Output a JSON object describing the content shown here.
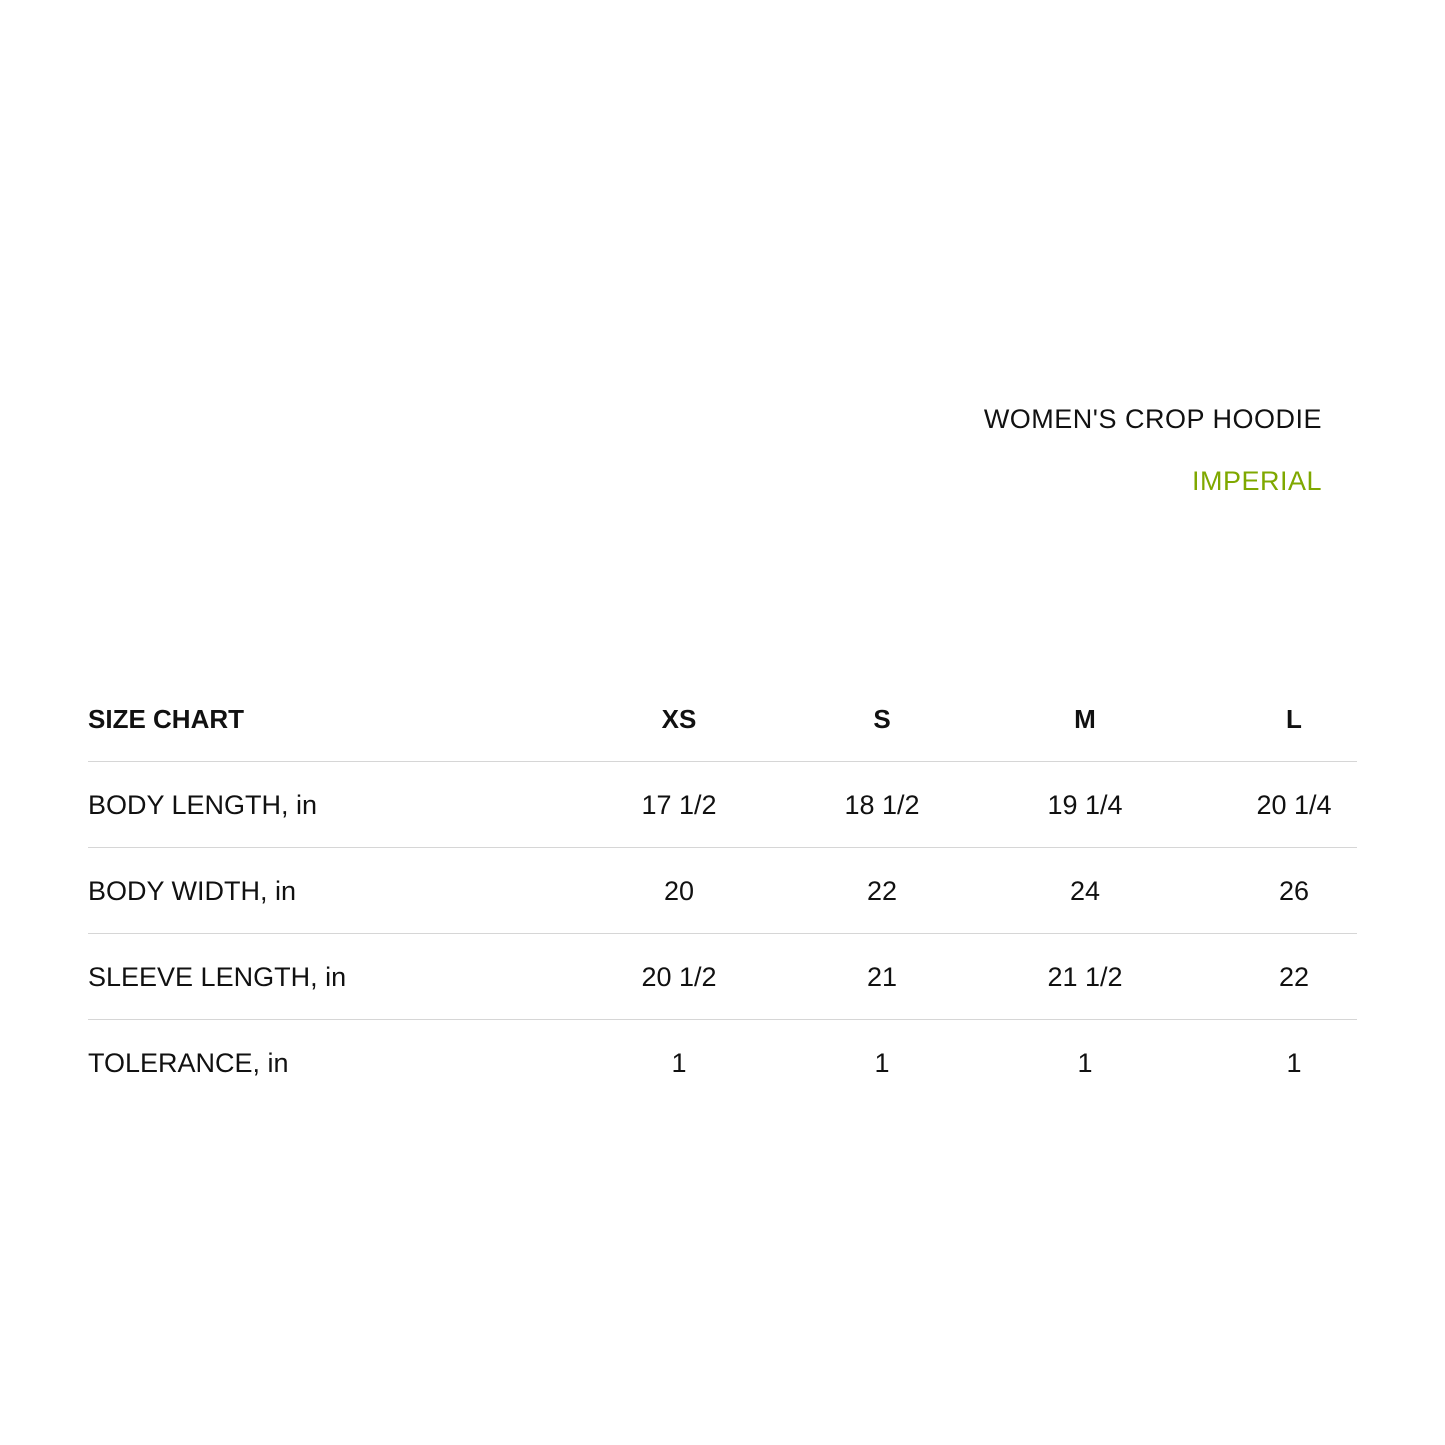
{
  "header": {
    "title": "WOMEN'S CROP HOODIE",
    "unit_system": "IMPERIAL",
    "unit_color": "#7fa800"
  },
  "table": {
    "corner_label": "SIZE CHART",
    "sizes": [
      "XS",
      "S",
      "M",
      "L"
    ],
    "rows": [
      {
        "label": "BODY LENGTH, in",
        "values": [
          "17 1/2",
          "18 1/2",
          "19 1/4",
          "20 1/4"
        ]
      },
      {
        "label": "BODY WIDTH, in",
        "values": [
          "20",
          "22",
          "24",
          "26"
        ]
      },
      {
        "label": "SLEEVE LENGTH, in",
        "values": [
          "20 1/2",
          "21",
          "21 1/2",
          "22"
        ]
      },
      {
        "label": "TOLERANCE, in",
        "values": [
          "1",
          "1",
          "1",
          "1"
        ]
      }
    ]
  }
}
